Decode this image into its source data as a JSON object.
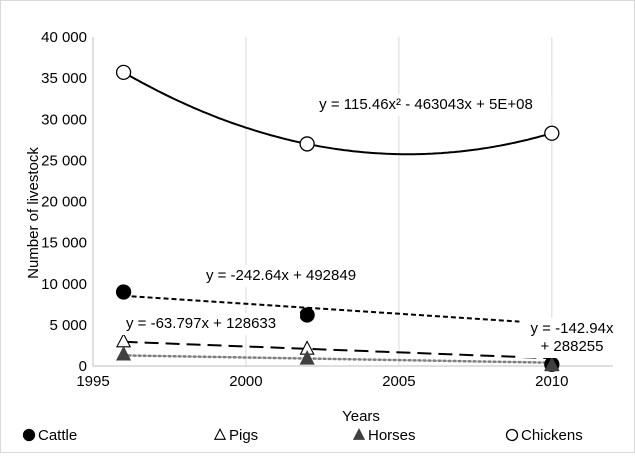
{
  "chart_data": {
    "type": "scatter",
    "title": "",
    "xlabel": "Years",
    "ylabel": "Number of livestock",
    "xlim": [
      1995,
      2012
    ],
    "ylim": [
      0,
      40000
    ],
    "xticks": [
      1995,
      2000,
      2005,
      2010
    ],
    "yticks": [
      0,
      5000,
      10000,
      15000,
      20000,
      25000,
      30000,
      35000,
      40000
    ],
    "x_tick_labels": [
      "1995",
      "2000",
      "2005",
      "2010"
    ],
    "y_tick_labels": [
      "0",
      "5 000",
      "10 000",
      "15 000",
      "20 000",
      "25 000",
      "30 000",
      "35 000",
      "40 000"
    ],
    "grid": "vertical",
    "legend_position": "bottom",
    "series": [
      {
        "name": "Cattle",
        "marker": "filled-circle",
        "x": [
          1996,
          2002,
          2010
        ],
        "y": [
          9000,
          6200,
          200
        ],
        "trendline": {
          "type": "linear",
          "equation": "y = -242.64x + 492849",
          "coef": [
            -242.64,
            492849
          ],
          "style": "short-dash"
        }
      },
      {
        "name": "Pigs",
        "marker": "open-triangle",
        "x": [
          1996,
          2002,
          2010
        ],
        "y": [
          3000,
          2100,
          200
        ],
        "trendline": {
          "type": "linear",
          "equation": "y = -142.94x + 288255",
          "coef": [
            -142.94,
            288255
          ],
          "style": "long-dash"
        }
      },
      {
        "name": "Horses",
        "marker": "filled-triangle",
        "x": [
          1996,
          2002,
          2010
        ],
        "y": [
          1400,
          900,
          100
        ],
        "trendline": {
          "type": "linear",
          "equation": "y = -63.797x + 128633",
          "coef": [
            -63.797,
            128633
          ],
          "style": "dotted"
        }
      },
      {
        "name": "Chickens",
        "marker": "open-circle",
        "x": [
          1996,
          2002,
          2010
        ],
        "y": [
          35700,
          27000,
          28300
        ],
        "trendline": {
          "type": "polynomial",
          "equation": "y = 115.46x² - 463043x + 5E+08",
          "style": "solid"
        }
      }
    ]
  }
}
